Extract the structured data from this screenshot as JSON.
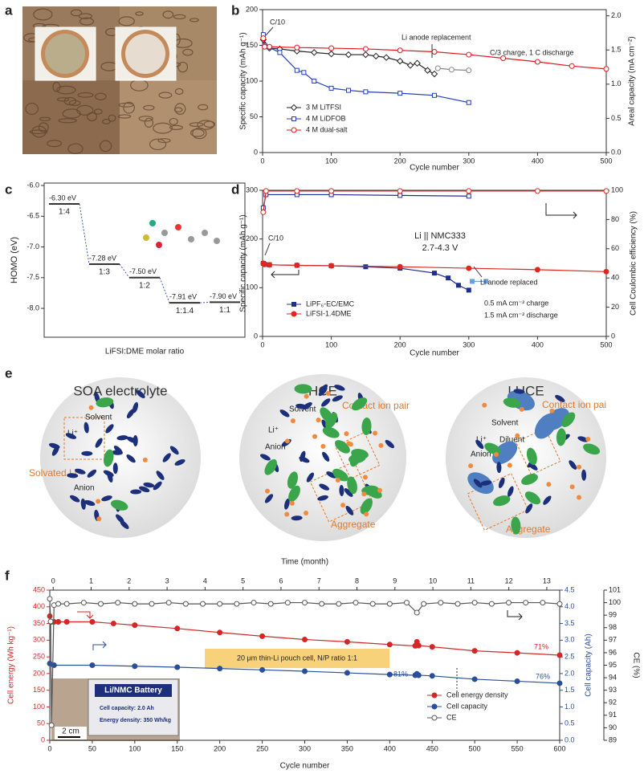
{
  "panels": [
    "a",
    "b",
    "c",
    "d",
    "e",
    "f"
  ],
  "chart_data": [
    {
      "type": "line",
      "xlabel": "Cycle number",
      "ylabel": "Specific capacity (mAh g⁻¹)",
      "y2label": "Areal capacity (mA cm⁻²)",
      "xlim": [
        0,
        500
      ],
      "xticks": [
        0,
        100,
        200,
        300,
        400,
        500
      ],
      "ylim": [
        0,
        200
      ],
      "yticks": [
        0,
        50,
        100,
        150,
        200
      ],
      "y2lim": [
        0,
        2.09
      ],
      "y2ticks": [
        {
          "value": 0,
          "label": "0.0"
        },
        0.5,
        {
          "value": 1,
          "label": "1.0"
        },
        1.5,
        {
          "value": 2,
          "label": "2.0"
        }
      ],
      "annotations": [
        "C/10",
        "Li anode replacement",
        "C/3 charge, 1 C discharge"
      ],
      "legend": "lower left",
      "series": [
        {
          "name": "3 M LiTFSI",
          "color": "#222222",
          "marker": "diamond",
          "marker_fill": "#ffffff",
          "x": [
            1,
            10,
            25,
            50,
            75,
            100,
            125,
            150,
            165,
            180,
            200,
            215,
            225,
            240,
            250
          ],
          "values": [
            158,
            146,
            145,
            142,
            140,
            138,
            137,
            137,
            135,
            133,
            128,
            122,
            125,
            115,
            110
          ]
        },
        {
          "name": "4 M LiDFOB",
          "color": "#1f3fbf",
          "marker": "square",
          "marker_fill": "#ffffff",
          "x": [
            1,
            3,
            10,
            25,
            50,
            60,
            75,
            100,
            125,
            150,
            200,
            250,
            300
          ],
          "values": [
            165,
            150,
            147,
            140,
            115,
            112,
            100,
            90,
            87,
            85,
            83,
            80,
            70
          ]
        },
        {
          "name": "4 M dual-salt",
          "color": "#e8141b",
          "marker": "circle",
          "marker_fill": "#ffffff",
          "x": [
            1,
            3,
            10,
            50,
            100,
            150,
            200,
            250,
            300,
            350,
            400,
            450,
            500
          ],
          "values": [
            160,
            148,
            148,
            147,
            146,
            145,
            143,
            141,
            137,
            132,
            127,
            121,
            117
          ]
        },
        {
          "color": "#888888",
          "marker": "circle",
          "marker_fill": "#ffffff",
          "x": [
            255,
            275,
            300
          ],
          "values": [
            118,
            116,
            115
          ]
        }
      ]
    },
    {
      "type": "step",
      "xlabel": "LiFSI:DME molar ratio",
      "ylabel": "HOMO (eV)",
      "categories": [
        "1:4",
        "1:3",
        "1:2",
        "1:1.4",
        "1:1"
      ],
      "values": [
        -6.3,
        -7.28,
        -7.5,
        -7.91,
        -7.9
      ],
      "value_labels": [
        "-6.30 eV",
        "-7.28 eV",
        "-7.50 eV",
        "-7.91 eV",
        "-7.90 eV"
      ],
      "ylim": [
        -8.47,
        -5.96
      ],
      "yticks": [
        {
          "value": -8,
          "label": "-8.0"
        },
        -7.5,
        {
          "value": -7,
          "label": "-7.0"
        },
        -6.5,
        {
          "value": -6,
          "label": "-6.0"
        }
      ],
      "color": "#333333"
    },
    {
      "type": "line",
      "xlabel": "Cycle number",
      "ylabel": "Specific capacity (mAh g⁻¹)",
      "y2label": "Cell Coulombic efficiency (%)",
      "xlim": [
        0,
        500
      ],
      "xticks": [
        0,
        100,
        200,
        300,
        400,
        500
      ],
      "ylim": [
        0,
        300
      ],
      "yticks": [
        0,
        100,
        200,
        300
      ],
      "y2lim": [
        0,
        100
      ],
      "y2ticks": [
        0,
        20,
        40,
        60,
        80,
        100
      ],
      "annotations": [
        "C/10",
        "Li || NMC333",
        "2.7-4.3 V",
        "Li anode replaced",
        "0.5 mA cm⁻² charge",
        "1.5 mA cm⁻² discharge"
      ],
      "legend": "lower left",
      "series": [
        {
          "name": "LiPF₆-EC/EMC",
          "color": "#1f2f8f",
          "marker": "square",
          "marker_fill": "#1f2f8f",
          "x": [
            1,
            3,
            10,
            50,
            100,
            150,
            200,
            250,
            270,
            285,
            300
          ],
          "values": [
            150,
            148,
            147,
            146,
            145,
            143,
            140,
            130,
            120,
            105,
            95
          ]
        },
        {
          "name": "LiFSI-1.4DME",
          "color": "#e0261f",
          "marker": "circle",
          "marker_fill": "#e0261f",
          "x": [
            1,
            3,
            10,
            50,
            100,
            200,
            300,
            400,
            500
          ],
          "values": [
            150,
            148,
            147,
            146,
            145,
            143,
            140,
            137,
            133
          ]
        },
        {
          "color": "#6a9fd8",
          "marker": "square",
          "marker_fill": "#6a9fd8",
          "x": [
            305,
            325
          ],
          "values": [
            113,
            113
          ]
        },
        {
          "color": "#1f2f8f",
          "marker": "square",
          "marker_fill": "#ffffff",
          "axis": "y2",
          "x": [
            1,
            5,
            50,
            100,
            200,
            300
          ],
          "values": [
            88,
            97,
            97,
            97,
            96.5,
            96
          ]
        },
        {
          "color": "#e0261f",
          "marker": "circle",
          "marker_fill": "#ffffff",
          "axis": "y2",
          "x": [
            1,
            5,
            50,
            100,
            200,
            300,
            400,
            500
          ],
          "values": [
            85,
            99.5,
            99.5,
            99.5,
            99.5,
            99.5,
            99.5,
            99.5
          ]
        }
      ]
    },
    {
      "type": "line",
      "xlabel": "Cycle number",
      "x2label": "Time (month)",
      "ylabel": "Cell energy (Wh kg⁻¹)",
      "y2label": "Cell capacity (Ah)",
      "y3label": "CE (%)",
      "xlim": [
        0,
        600
      ],
      "xticks": [
        0,
        50,
        100,
        150,
        200,
        250,
        300,
        350,
        400,
        450,
        500,
        550,
        600
      ],
      "x2lim": [
        -0.09,
        13.34
      ],
      "x2ticks": [
        0,
        1,
        2,
        3,
        4,
        5,
        6,
        7,
        8,
        9,
        10,
        11,
        12,
        13
      ],
      "ylim": [
        0,
        450
      ],
      "yticks": [
        0,
        50,
        100,
        150,
        200,
        250,
        300,
        350,
        400,
        450
      ],
      "y2lim": [
        0,
        4.5
      ],
      "y2ticks": [
        {
          "value": 0,
          "label": "0.0"
        },
        0.5,
        {
          "value": 1,
          "label": "1.0"
        },
        1.5,
        {
          "value": 2,
          "label": "2.0"
        },
        2.5,
        {
          "value": 3,
          "label": "3.0"
        },
        3.5,
        {
          "value": 4,
          "label": "4.0"
        },
        4.5
      ],
      "y3lim": [
        89,
        101
      ],
      "y3ticks": [
        89,
        90,
        91,
        92,
        93,
        94,
        95,
        96,
        97,
        98,
        99,
        100,
        101
      ],
      "axis_colors": {
        "y": "#d62728",
        "y2": "#2a4f9a"
      },
      "annotations": [
        "71%",
        "81%",
        "76%",
        "20 μm thin-Li pouch cell, N/P ratio 1:1"
      ],
      "legend": "lower right",
      "series": [
        {
          "name": "Cell energy density",
          "color": "#d62728",
          "marker": "circle",
          "marker_fill": "#d62728",
          "x": [
            0,
            2,
            5,
            10,
            20,
            50,
            75,
            100,
            150,
            200,
            250,
            300,
            350,
            400,
            430,
            432,
            434,
            450,
            500,
            550,
            600
          ],
          "values": [
            372,
            355,
            355,
            355,
            355,
            355,
            350,
            345,
            335,
            323,
            312,
            302,
            295,
            287,
            283,
            295,
            284,
            280,
            268,
            262,
            255
          ]
        },
        {
          "name": "Cell capacity",
          "color": "#2a4f9a",
          "marker": "circle",
          "marker_fill": "#2a4f9a",
          "axis": "y2",
          "x": [
            0,
            5,
            50,
            100,
            150,
            200,
            250,
            300,
            350,
            400,
            430,
            432,
            434,
            450,
            500,
            550,
            600
          ],
          "values": [
            2.3,
            2.25,
            2.25,
            2.22,
            2.19,
            2.15,
            2.11,
            2.07,
            2.02,
            1.97,
            1.95,
            1.99,
            1.95,
            1.93,
            1.83,
            1.77,
            1.71
          ]
        },
        {
          "name": "CE",
          "color": "#555555",
          "marker": "circle",
          "marker_fill": "#ffffff",
          "axis": "y3",
          "x": [
            0,
            1,
            2,
            5,
            10,
            20,
            40,
            60,
            80,
            100,
            120,
            140,
            160,
            180,
            200,
            220,
            240,
            260,
            280,
            300,
            320,
            340,
            360,
            380,
            400,
            420,
            432,
            440,
            460,
            480,
            500,
            520,
            540,
            560,
            580,
            600
          ],
          "values": [
            100.3,
            98.5,
            90.2,
            99.8,
            99.9,
            99.9,
            100,
            99.9,
            100,
            99.9,
            99.9,
            100,
            99.9,
            99.9,
            99.9,
            99.9,
            100,
            99.9,
            100,
            100,
            99.9,
            99.9,
            100,
            99.9,
            99.9,
            100,
            99.2,
            99.9,
            100,
            99.9,
            100,
            99.9,
            100,
            100,
            100,
            99.9
          ]
        }
      ]
    }
  ],
  "diagram": {
    "titles": [
      "SOA electrolyte",
      "HCE",
      "LHCE"
    ],
    "labels": [
      "Solvent",
      "Li⁺",
      "Solvated Li⁺",
      "Anion",
      "Solvent",
      "Li⁺",
      "Anion",
      "Contact ion pair",
      "Aggregate",
      "Solvent",
      "Li⁺",
      "Diluent",
      "Anion",
      "Contact ion pai",
      "Aggregate"
    ]
  },
  "inset": {
    "title": "Li/NMC Battery",
    "lines": [
      "Cell capacity: 2.0 Ah",
      "Energy density: 350 Wh/kg"
    ],
    "scale": "2 cm"
  }
}
